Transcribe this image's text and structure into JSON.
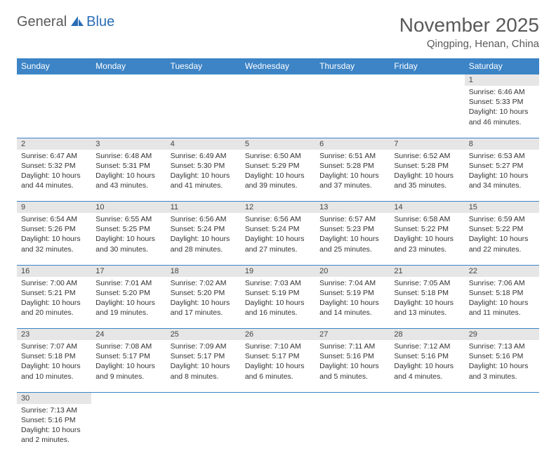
{
  "logo": {
    "general": "General",
    "blue": "Blue"
  },
  "header": {
    "month": "November 2025",
    "location": "Qingping, Henan, China"
  },
  "colors": {
    "header_bg": "#3c84c6",
    "header_fg": "#ffffff",
    "daynum_bg": "#e6e6e6",
    "rule": "#3c84c6",
    "title": "#595959"
  },
  "weekdays": [
    "Sunday",
    "Monday",
    "Tuesday",
    "Wednesday",
    "Thursday",
    "Friday",
    "Saturday"
  ],
  "weeks": [
    [
      null,
      null,
      null,
      null,
      null,
      null,
      {
        "n": "1",
        "sr": "Sunrise: 6:46 AM",
        "ss": "Sunset: 5:33 PM",
        "dl": "Daylight: 10 hours and 46 minutes."
      }
    ],
    [
      {
        "n": "2",
        "sr": "Sunrise: 6:47 AM",
        "ss": "Sunset: 5:32 PM",
        "dl": "Daylight: 10 hours and 44 minutes."
      },
      {
        "n": "3",
        "sr": "Sunrise: 6:48 AM",
        "ss": "Sunset: 5:31 PM",
        "dl": "Daylight: 10 hours and 43 minutes."
      },
      {
        "n": "4",
        "sr": "Sunrise: 6:49 AM",
        "ss": "Sunset: 5:30 PM",
        "dl": "Daylight: 10 hours and 41 minutes."
      },
      {
        "n": "5",
        "sr": "Sunrise: 6:50 AM",
        "ss": "Sunset: 5:29 PM",
        "dl": "Daylight: 10 hours and 39 minutes."
      },
      {
        "n": "6",
        "sr": "Sunrise: 6:51 AM",
        "ss": "Sunset: 5:28 PM",
        "dl": "Daylight: 10 hours and 37 minutes."
      },
      {
        "n": "7",
        "sr": "Sunrise: 6:52 AM",
        "ss": "Sunset: 5:28 PM",
        "dl": "Daylight: 10 hours and 35 minutes."
      },
      {
        "n": "8",
        "sr": "Sunrise: 6:53 AM",
        "ss": "Sunset: 5:27 PM",
        "dl": "Daylight: 10 hours and 34 minutes."
      }
    ],
    [
      {
        "n": "9",
        "sr": "Sunrise: 6:54 AM",
        "ss": "Sunset: 5:26 PM",
        "dl": "Daylight: 10 hours and 32 minutes."
      },
      {
        "n": "10",
        "sr": "Sunrise: 6:55 AM",
        "ss": "Sunset: 5:25 PM",
        "dl": "Daylight: 10 hours and 30 minutes."
      },
      {
        "n": "11",
        "sr": "Sunrise: 6:56 AM",
        "ss": "Sunset: 5:24 PM",
        "dl": "Daylight: 10 hours and 28 minutes."
      },
      {
        "n": "12",
        "sr": "Sunrise: 6:56 AM",
        "ss": "Sunset: 5:24 PM",
        "dl": "Daylight: 10 hours and 27 minutes."
      },
      {
        "n": "13",
        "sr": "Sunrise: 6:57 AM",
        "ss": "Sunset: 5:23 PM",
        "dl": "Daylight: 10 hours and 25 minutes."
      },
      {
        "n": "14",
        "sr": "Sunrise: 6:58 AM",
        "ss": "Sunset: 5:22 PM",
        "dl": "Daylight: 10 hours and 23 minutes."
      },
      {
        "n": "15",
        "sr": "Sunrise: 6:59 AM",
        "ss": "Sunset: 5:22 PM",
        "dl": "Daylight: 10 hours and 22 minutes."
      }
    ],
    [
      {
        "n": "16",
        "sr": "Sunrise: 7:00 AM",
        "ss": "Sunset: 5:21 PM",
        "dl": "Daylight: 10 hours and 20 minutes."
      },
      {
        "n": "17",
        "sr": "Sunrise: 7:01 AM",
        "ss": "Sunset: 5:20 PM",
        "dl": "Daylight: 10 hours and 19 minutes."
      },
      {
        "n": "18",
        "sr": "Sunrise: 7:02 AM",
        "ss": "Sunset: 5:20 PM",
        "dl": "Daylight: 10 hours and 17 minutes."
      },
      {
        "n": "19",
        "sr": "Sunrise: 7:03 AM",
        "ss": "Sunset: 5:19 PM",
        "dl": "Daylight: 10 hours and 16 minutes."
      },
      {
        "n": "20",
        "sr": "Sunrise: 7:04 AM",
        "ss": "Sunset: 5:19 PM",
        "dl": "Daylight: 10 hours and 14 minutes."
      },
      {
        "n": "21",
        "sr": "Sunrise: 7:05 AM",
        "ss": "Sunset: 5:18 PM",
        "dl": "Daylight: 10 hours and 13 minutes."
      },
      {
        "n": "22",
        "sr": "Sunrise: 7:06 AM",
        "ss": "Sunset: 5:18 PM",
        "dl": "Daylight: 10 hours and 11 minutes."
      }
    ],
    [
      {
        "n": "23",
        "sr": "Sunrise: 7:07 AM",
        "ss": "Sunset: 5:18 PM",
        "dl": "Daylight: 10 hours and 10 minutes."
      },
      {
        "n": "24",
        "sr": "Sunrise: 7:08 AM",
        "ss": "Sunset: 5:17 PM",
        "dl": "Daylight: 10 hours and 9 minutes."
      },
      {
        "n": "25",
        "sr": "Sunrise: 7:09 AM",
        "ss": "Sunset: 5:17 PM",
        "dl": "Daylight: 10 hours and 8 minutes."
      },
      {
        "n": "26",
        "sr": "Sunrise: 7:10 AM",
        "ss": "Sunset: 5:17 PM",
        "dl": "Daylight: 10 hours and 6 minutes."
      },
      {
        "n": "27",
        "sr": "Sunrise: 7:11 AM",
        "ss": "Sunset: 5:16 PM",
        "dl": "Daylight: 10 hours and 5 minutes."
      },
      {
        "n": "28",
        "sr": "Sunrise: 7:12 AM",
        "ss": "Sunset: 5:16 PM",
        "dl": "Daylight: 10 hours and 4 minutes."
      },
      {
        "n": "29",
        "sr": "Sunrise: 7:13 AM",
        "ss": "Sunset: 5:16 PM",
        "dl": "Daylight: 10 hours and 3 minutes."
      }
    ],
    [
      {
        "n": "30",
        "sr": "Sunrise: 7:13 AM",
        "ss": "Sunset: 5:16 PM",
        "dl": "Daylight: 10 hours and 2 minutes."
      },
      null,
      null,
      null,
      null,
      null,
      null
    ]
  ]
}
